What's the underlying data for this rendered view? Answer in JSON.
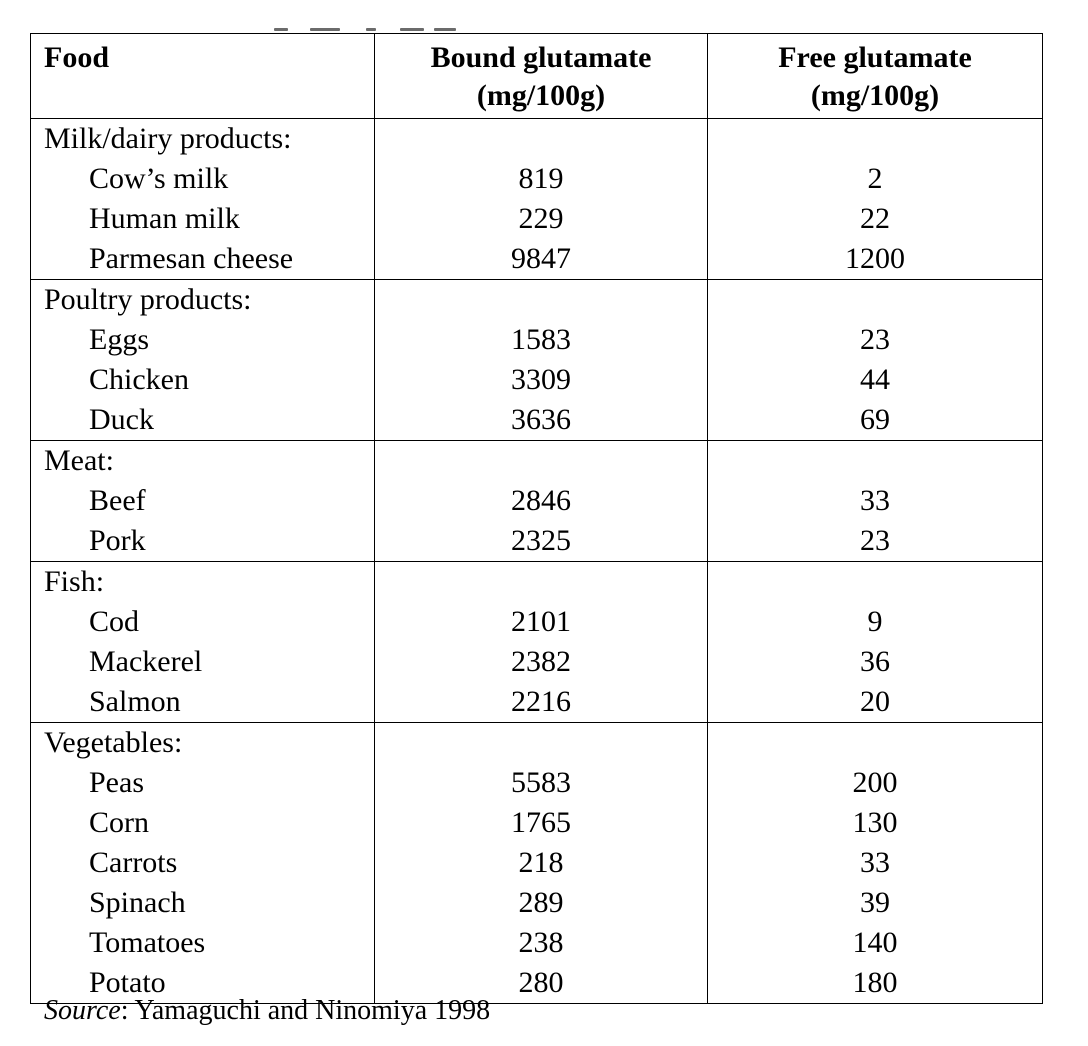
{
  "table": {
    "headers": {
      "food": "Food",
      "bound_line1": "Bound glutamate",
      "bound_line2": "(mg/100g)",
      "free_line1": "Free glutamate",
      "free_line2": "(mg/100g)"
    },
    "groups": [
      {
        "category": "Milk/dairy products:",
        "rows": [
          {
            "food": "Cow’s milk",
            "bound": "819",
            "free": "2"
          },
          {
            "food": "Human milk",
            "bound": "229",
            "free": "22"
          },
          {
            "food": "Parmesan cheese",
            "bound": "9847",
            "free": "1200"
          }
        ]
      },
      {
        "category": "Poultry products:",
        "rows": [
          {
            "food": "Eggs",
            "bound": "1583",
            "free": "23"
          },
          {
            "food": "Chicken",
            "bound": "3309",
            "free": "44"
          },
          {
            "food": "Duck",
            "bound": "3636",
            "free": "69"
          }
        ]
      },
      {
        "category": "Meat:",
        "rows": [
          {
            "food": "Beef",
            "bound": "2846",
            "free": "33"
          },
          {
            "food": "Pork",
            "bound": "2325",
            "free": "23"
          }
        ]
      },
      {
        "category": "Fish:",
        "rows": [
          {
            "food": "Cod",
            "bound": "2101",
            "free": "9"
          },
          {
            "food": "Mackerel",
            "bound": "2382",
            "free": "36"
          },
          {
            "food": "Salmon",
            "bound": "2216",
            "free": "20"
          }
        ]
      },
      {
        "category": "Vegetables:",
        "rows": [
          {
            "food": "Peas",
            "bound": "5583",
            "free": "200"
          },
          {
            "food": "Corn",
            "bound": "1765",
            "free": "130"
          },
          {
            "food": "Carrots",
            "bound": "218",
            "free": "33"
          },
          {
            "food": "Spinach",
            "bound": "289",
            "free": "39"
          },
          {
            "food": "Tomatoes",
            "bound": "238",
            "free": "140"
          },
          {
            "food": "Potato",
            "bound": "280",
            "free": "180"
          }
        ]
      }
    ]
  },
  "source": {
    "label": "Source",
    "text": ": Yamaguchi and Ninomiya 1998"
  }
}
